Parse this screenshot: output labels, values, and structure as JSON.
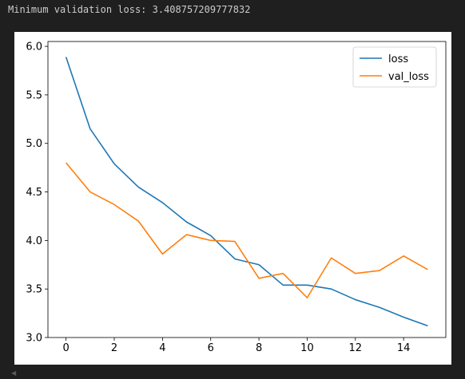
{
  "output": {
    "text": "Minimum validation loss: 3.408757209777832"
  },
  "chart_data": {
    "type": "line",
    "x": [
      0,
      1,
      2,
      3,
      4,
      5,
      6,
      7,
      8,
      9,
      10,
      11,
      12,
      13,
      14,
      15
    ],
    "series": [
      {
        "name": "loss",
        "color": "#1f77b4",
        "values": [
          5.89,
          5.15,
          4.79,
          4.55,
          4.39,
          4.19,
          4.05,
          3.81,
          3.75,
          3.54,
          3.54,
          3.5,
          3.39,
          3.31,
          3.21,
          3.12
        ]
      },
      {
        "name": "val_loss",
        "color": "#ff7f0e",
        "values": [
          4.8,
          4.5,
          4.37,
          4.2,
          3.86,
          4.06,
          4.0,
          3.99,
          3.61,
          3.66,
          3.41,
          3.82,
          3.66,
          3.69,
          3.84,
          3.7
        ]
      }
    ],
    "xlim": [
      -0.75,
      15.75
    ],
    "ylim": [
      3.0,
      6.05
    ],
    "xticks": [
      0,
      2,
      4,
      6,
      8,
      10,
      12,
      14
    ],
    "yticks": [
      3.0,
      3.5,
      4.0,
      4.5,
      5.0,
      5.5,
      6.0
    ],
    "ytick_labels": [
      "3.0",
      "3.5",
      "4.0",
      "4.5",
      "5.0",
      "5.5",
      "6.0"
    ],
    "legend": "top-right",
    "grid": false
  }
}
